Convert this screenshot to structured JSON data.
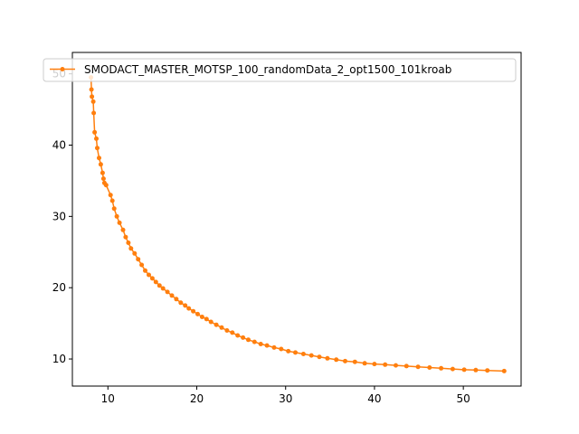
{
  "chart_data": {
    "type": "line",
    "title": "",
    "xlabel": "",
    "ylabel": "",
    "xlim": [
      6,
      56.5
    ],
    "ylim": [
      6.2,
      53
    ],
    "xticks": [
      10,
      20,
      30,
      40,
      50
    ],
    "yticks": [
      10,
      20,
      30,
      40,
      50
    ],
    "grid": false,
    "legend": "upper left",
    "series": [
      {
        "name": "SMODACT_MASTER_MOTSP_100_randomData_2_opt1500_101kroab",
        "color": "#ff7f0e",
        "marker": "circle",
        "x": [
          8.1,
          8.15,
          8.2,
          8.35,
          8.4,
          8.5,
          8.7,
          8.8,
          9.0,
          9.2,
          9.4,
          9.5,
          9.6,
          9.8,
          10.3,
          10.5,
          10.7,
          11.0,
          11.3,
          11.7,
          12.0,
          12.3,
          12.6,
          13.0,
          13.4,
          13.8,
          14.2,
          14.6,
          15.0,
          15.4,
          15.8,
          16.2,
          16.7,
          17.2,
          17.7,
          18.2,
          18.7,
          19.1,
          19.6,
          20.1,
          20.6,
          21.1,
          21.6,
          22.2,
          22.8,
          23.4,
          24.0,
          24.6,
          25.2,
          25.8,
          26.5,
          27.2,
          27.9,
          28.7,
          29.5,
          30.3,
          31.1,
          32.0,
          32.9,
          33.8,
          34.7,
          35.7,
          36.7,
          37.8,
          38.9,
          40.0,
          41.2,
          42.4,
          43.6,
          44.9,
          46.2,
          47.5,
          48.8,
          50.1,
          51.4,
          52.7,
          54.6
        ],
        "y": [
          49.5,
          47.8,
          46.8,
          46.1,
          44.5,
          41.8,
          40.9,
          39.6,
          38.2,
          37.3,
          36.1,
          35.3,
          34.7,
          34.4,
          33.0,
          32.2,
          31.1,
          30.0,
          29.1,
          28.1,
          27.1,
          26.3,
          25.5,
          24.8,
          24.0,
          23.2,
          22.4,
          21.8,
          21.3,
          20.8,
          20.3,
          19.9,
          19.4,
          18.9,
          18.4,
          17.9,
          17.5,
          17.1,
          16.7,
          16.3,
          15.9,
          15.6,
          15.2,
          14.8,
          14.4,
          14.0,
          13.7,
          13.3,
          13.0,
          12.7,
          12.4,
          12.1,
          11.9,
          11.6,
          11.4,
          11.1,
          10.9,
          10.7,
          10.5,
          10.3,
          10.1,
          9.9,
          9.7,
          9.6,
          9.4,
          9.3,
          9.2,
          9.1,
          9.0,
          8.9,
          8.8,
          8.7,
          8.6,
          8.5,
          8.45,
          8.4,
          8.3
        ]
      }
    ]
  }
}
